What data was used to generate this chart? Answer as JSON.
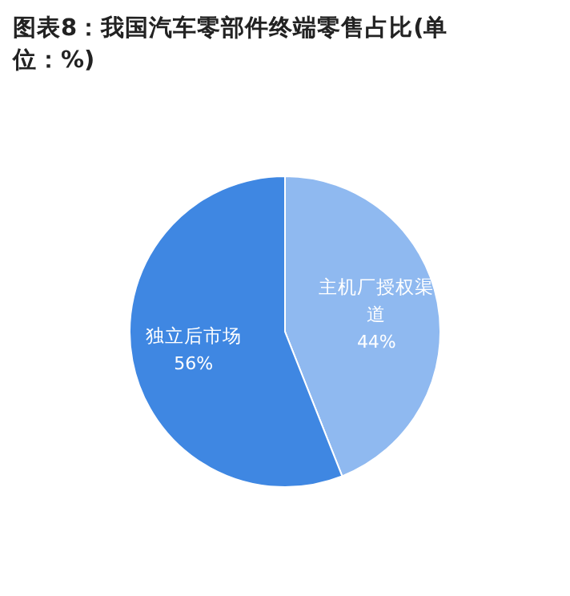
{
  "chart_data": {
    "type": "pie",
    "title": "图表8：我国汽车零部件终端零售占比(单位：%)",
    "categories": [
      "主机厂授权渠道",
      "独立后市场"
    ],
    "values": [
      44,
      56
    ],
    "colors": [
      "#8fb9f0",
      "#3f87e2"
    ],
    "value_labels": [
      "44%",
      "56%"
    ],
    "legend": false
  }
}
